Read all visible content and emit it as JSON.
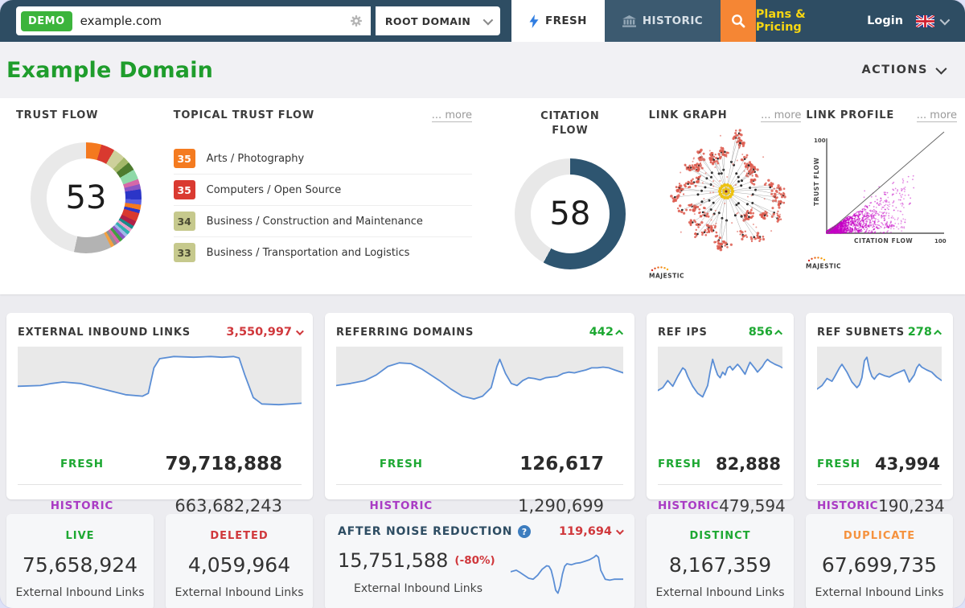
{
  "topbar": {
    "demo_badge": "DEMO",
    "search_value": "example.com",
    "scope_select": "ROOT DOMAIN",
    "tab_fresh": "FRESH",
    "tab_historic": "HISTORIC",
    "plans_pricing": "Plans & Pricing",
    "login": "Login"
  },
  "header": {
    "title": "Example Domain",
    "actions_label": "ACTIONS"
  },
  "overview": {
    "trust_flow": {
      "label": "TRUST FLOW",
      "value": "53"
    },
    "topical_trust_flow": {
      "label": "TOPICAL TRUST FLOW",
      "more_label": "... more",
      "items": [
        {
          "score": "35",
          "label": "Arts / Photography",
          "color": "#f47b20",
          "text_color": "#ffffff"
        },
        {
          "score": "35",
          "label": "Computers / Open Source",
          "color": "#da3a31",
          "text_color": "#ffffff"
        },
        {
          "score": "34",
          "label": "Business / Construction and Maintenance",
          "color": "#c6c98d",
          "text_color": "#4a4a33"
        },
        {
          "score": "33",
          "label": "Business / Transportation and Logistics",
          "color": "#c6c98d",
          "text_color": "#4a4a33"
        }
      ]
    },
    "citation_flow": {
      "label": "CITATION FLOW",
      "value": "58"
    },
    "link_graph": {
      "label": "LINK GRAPH",
      "more_label": "... more",
      "brand": "MAJESTIC"
    },
    "link_profile": {
      "label": "LINK PROFILE",
      "more_label": "... more",
      "brand": "MAJESTIC",
      "xlabel": "CITATION FLOW",
      "ylabel": "TRUST FLOW",
      "x_max_label": "100",
      "y_max_label": "100"
    }
  },
  "metric_cards": [
    {
      "title": "EXTERNAL INBOUND LINKS",
      "delta": "3,550,997",
      "delta_dir": "down",
      "fresh_label": "FRESH",
      "fresh_value": "79,718,888",
      "historic_label": "HISTORIC",
      "historic_value": "663,682,243"
    },
    {
      "title": "REFERRING DOMAINS",
      "delta": "442",
      "delta_dir": "up",
      "fresh_label": "FRESH",
      "fresh_value": "126,617",
      "historic_label": "HISTORIC",
      "historic_value": "1,290,699"
    },
    {
      "title": "REF IPS",
      "delta": "856",
      "delta_dir": "up",
      "fresh_label": "FRESH",
      "fresh_value": "82,888",
      "historic_label": "HISTORIC",
      "historic_value": "479,594"
    },
    {
      "title": "REF SUBNETS",
      "delta": "278",
      "delta_dir": "up",
      "fresh_label": "FRESH",
      "fresh_value": "43,994",
      "historic_label": "HISTORIC",
      "historic_value": "190,234"
    }
  ],
  "bottom_cards": [
    {
      "title": "LIVE",
      "title_color": "#1da832",
      "value": "75,658,924",
      "caption": "External Inbound Links"
    },
    {
      "title": "DELETED",
      "title_color": "#d0383c",
      "value": "4,059,964",
      "caption": "External Inbound Links"
    },
    {
      "title": "AFTER NOISE REDUCTION",
      "title_color": "#2e4d63",
      "delta": "119,694",
      "delta_dir": "down",
      "value": "15,751,588",
      "pct": "(-80%)",
      "caption": "External Inbound Links"
    },
    {
      "title": "DISTINCT",
      "title_color": "#1da832",
      "value": "8,167,359",
      "caption": "External Inbound Links"
    },
    {
      "title": "DUPLICATE",
      "title_color": "#f5923e",
      "value": "67,699,735",
      "caption": "External Inbound Links"
    }
  ],
  "colors": {
    "topbar_bg": "#2e4d63",
    "accent_orange": "#f58634",
    "fresh_green": "#1da832",
    "historic_purple": "#a93bc4",
    "delta_red": "#d0383c",
    "title_green": "#1f9d2c",
    "citation_ring": "#2e5570",
    "spark_line": "#5b8ed5",
    "scatter_magenta": "#c400c4"
  },
  "chart_data": [
    {
      "id": "trust-donut",
      "type": "donut",
      "value": 53,
      "max": 100,
      "segments": [
        [
          "#f4791f",
          4.5
        ],
        [
          "#d9392f",
          4
        ],
        [
          "#cdd09b",
          3.5
        ],
        [
          "#a4b86a",
          2
        ],
        [
          "#4e7c2f",
          2.5
        ],
        [
          "#8fd9a8",
          3
        ],
        [
          "#d668a8",
          1.5
        ],
        [
          "#8a56c4",
          1.5
        ],
        [
          "#2b35c8",
          3
        ],
        [
          "#5a5fe0",
          1.5
        ],
        [
          "#f4791f",
          1.5
        ],
        [
          "#2b35c8",
          1
        ],
        [
          "#d9392f",
          2.5
        ],
        [
          "#b02048",
          1.5
        ],
        [
          "#188a8a",
          1
        ],
        [
          "#e8a0c8",
          1
        ],
        [
          "#30b0b0",
          1
        ],
        [
          "#a0b8e8",
          1
        ],
        [
          "#8a56c4",
          1
        ],
        [
          "#40a040",
          1
        ],
        [
          "#d668a8",
          1
        ],
        [
          "#909090",
          1
        ],
        [
          "#f4a040",
          1
        ],
        [
          "#b3b3b3",
          11
        ],
        [
          "#e9e9e9",
          46.5
        ]
      ]
    },
    {
      "id": "citation-donut",
      "type": "donut",
      "value": 58,
      "max": 100,
      "segments": [
        [
          "#2e5570",
          58
        ],
        [
          "#e8e8e8",
          42
        ]
      ]
    },
    {
      "id": "link-graph",
      "type": "network",
      "branches": 34,
      "node_color": "#dd5a4e",
      "center_color": "#edc211",
      "line_color": "#aaaaaa",
      "junction_color": "#2a2a2a"
    },
    {
      "id": "link-profile",
      "type": "scatter",
      "point_color": "#c400c4",
      "x_range": [
        0,
        100
      ],
      "y_range": [
        0,
        100
      ],
      "shape": "dense triangular mass below diagonal, citation flow 0-60, trust flow up to ~50, sparse outliers to 75",
      "diagonal_line": true
    },
    {
      "id": "spark-eil",
      "type": "line",
      "style": "area-inverse",
      "points": [
        [
          0,
          56
        ],
        [
          8,
          55
        ],
        [
          12,
          52
        ],
        [
          16,
          50
        ],
        [
          22,
          52
        ],
        [
          30,
          60
        ],
        [
          38,
          68
        ],
        [
          44,
          70
        ],
        [
          46,
          66
        ],
        [
          48,
          30
        ],
        [
          50,
          17
        ],
        [
          55,
          14
        ],
        [
          62,
          15
        ],
        [
          68,
          14
        ],
        [
          72,
          15
        ],
        [
          76,
          14
        ],
        [
          78,
          16
        ],
        [
          80,
          40
        ],
        [
          83,
          72
        ],
        [
          86,
          81
        ],
        [
          92,
          82
        ],
        [
          100,
          80
        ]
      ]
    },
    {
      "id": "spark-rd",
      "type": "line",
      "style": "area-inverse",
      "points": [
        [
          0,
          55
        ],
        [
          5,
          52
        ],
        [
          10,
          48
        ],
        [
          14,
          40
        ],
        [
          18,
          28
        ],
        [
          22,
          23
        ],
        [
          26,
          24
        ],
        [
          30,
          32
        ],
        [
          36,
          48
        ],
        [
          40,
          60
        ],
        [
          44,
          70
        ],
        [
          48,
          74
        ],
        [
          51,
          70
        ],
        [
          54,
          58
        ],
        [
          56,
          28
        ],
        [
          57,
          18
        ],
        [
          59,
          38
        ],
        [
          61,
          52
        ],
        [
          63,
          55
        ],
        [
          65,
          48
        ],
        [
          67,
          44
        ],
        [
          69,
          45
        ],
        [
          71,
          47
        ],
        [
          73,
          44
        ],
        [
          77,
          42
        ],
        [
          79,
          38
        ],
        [
          81,
          36
        ],
        [
          83,
          37
        ],
        [
          85,
          35
        ],
        [
          87,
          33
        ],
        [
          89,
          30
        ],
        [
          91,
          30
        ],
        [
          93,
          29
        ],
        [
          95,
          30
        ],
        [
          97,
          33
        ],
        [
          100,
          37
        ]
      ]
    },
    {
      "id": "spark-ips",
      "type": "line",
      "style": "area-inverse",
      "points": [
        [
          0,
          62
        ],
        [
          4,
          58
        ],
        [
          8,
          48
        ],
        [
          10,
          52
        ],
        [
          12,
          56
        ],
        [
          16,
          42
        ],
        [
          20,
          30
        ],
        [
          22,
          33
        ],
        [
          24,
          42
        ],
        [
          28,
          56
        ],
        [
          32,
          66
        ],
        [
          36,
          71
        ],
        [
          40,
          55
        ],
        [
          42,
          35
        ],
        [
          44,
          18
        ],
        [
          46,
          30
        ],
        [
          48,
          40
        ],
        [
          50,
          44
        ],
        [
          52,
          36
        ],
        [
          54,
          40
        ],
        [
          56,
          30
        ],
        [
          58,
          28
        ],
        [
          60,
          33
        ],
        [
          64,
          25
        ],
        [
          66,
          29
        ],
        [
          70,
          39
        ],
        [
          72,
          30
        ],
        [
          74,
          22
        ],
        [
          78,
          31
        ],
        [
          80,
          36
        ],
        [
          84,
          28
        ],
        [
          86,
          22
        ],
        [
          88,
          18
        ],
        [
          90,
          21
        ],
        [
          94,
          25
        ],
        [
          98,
          28
        ],
        [
          100,
          30
        ]
      ]
    },
    {
      "id": "spark-subnets",
      "type": "line",
      "style": "area-inverse",
      "points": [
        [
          0,
          60
        ],
        [
          4,
          55
        ],
        [
          8,
          45
        ],
        [
          12,
          49
        ],
        [
          14,
          43
        ],
        [
          18,
          30
        ],
        [
          20,
          25
        ],
        [
          24,
          36
        ],
        [
          28,
          50
        ],
        [
          32,
          58
        ],
        [
          34,
          54
        ],
        [
          36,
          44
        ],
        [
          38,
          20
        ],
        [
          40,
          15
        ],
        [
          42,
          32
        ],
        [
          44,
          42
        ],
        [
          46,
          46
        ],
        [
          48,
          41
        ],
        [
          50,
          38
        ],
        [
          54,
          41
        ],
        [
          58,
          43
        ],
        [
          62,
          39
        ],
        [
          66,
          36
        ],
        [
          70,
          33
        ],
        [
          72,
          41
        ],
        [
          74,
          50
        ],
        [
          78,
          40
        ],
        [
          80,
          30
        ],
        [
          82,
          25
        ],
        [
          84,
          29
        ],
        [
          88,
          33
        ],
        [
          92,
          36
        ],
        [
          96,
          43
        ],
        [
          100,
          48
        ]
      ]
    },
    {
      "id": "spark-noise",
      "type": "line",
      "style": "plain",
      "points": [
        [
          0,
          45
        ],
        [
          5,
          42
        ],
        [
          8,
          46
        ],
        [
          12,
          52
        ],
        [
          16,
          58
        ],
        [
          20,
          60
        ],
        [
          24,
          52
        ],
        [
          28,
          40
        ],
        [
          32,
          33
        ],
        [
          34,
          34
        ],
        [
          36,
          42
        ],
        [
          38,
          60
        ],
        [
          40,
          82
        ],
        [
          42,
          88
        ],
        [
          44,
          74
        ],
        [
          46,
          50
        ],
        [
          48,
          34
        ],
        [
          50,
          29
        ],
        [
          54,
          31
        ],
        [
          58,
          28
        ],
        [
          62,
          27
        ],
        [
          66,
          24
        ],
        [
          70,
          21
        ],
        [
          74,
          16
        ],
        [
          76,
          12
        ],
        [
          78,
          16
        ],
        [
          80,
          42
        ],
        [
          84,
          60
        ],
        [
          88,
          62
        ],
        [
          92,
          60
        ],
        [
          100,
          60
        ]
      ]
    }
  ]
}
